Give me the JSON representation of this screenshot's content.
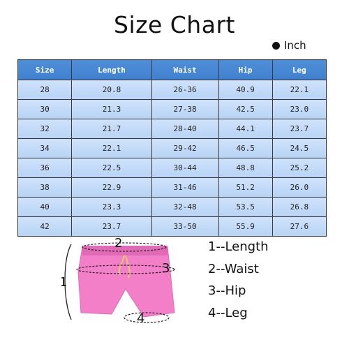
{
  "title": "Size Chart",
  "unit_label": "Inch",
  "table": {
    "headers": [
      "Size",
      "Length",
      "Waist",
      "Hip",
      "Leg"
    ],
    "rows": [
      [
        "28",
        "20.8",
        "26-36",
        "40.9",
        "22.1"
      ],
      [
        "30",
        "21.3",
        "27-38",
        "42.5",
        "23.0"
      ],
      [
        "32",
        "21.7",
        "28-40",
        "44.1",
        "23.7"
      ],
      [
        "34",
        "22.1",
        "29-42",
        "46.5",
        "24.5"
      ],
      [
        "36",
        "22.5",
        "30-44",
        "48.8",
        "25.2"
      ],
      [
        "38",
        "22.9",
        "31-46",
        "51.2",
        "26.0"
      ],
      [
        "40",
        "23.3",
        "32-48",
        "53.5",
        "26.8"
      ],
      [
        "42",
        "23.7",
        "33-50",
        "55.9",
        "27.6"
      ]
    ]
  },
  "diagram": {
    "markers": [
      "1",
      "2",
      "3",
      "4"
    ],
    "legend": [
      "1--Length",
      "2--Waist",
      "3--Hip",
      "4--Leg"
    ],
    "colors": {
      "shorts": "#f47fc9",
      "shorts_shade": "#e06ab5",
      "drawstring": "#e8c96a"
    }
  }
}
